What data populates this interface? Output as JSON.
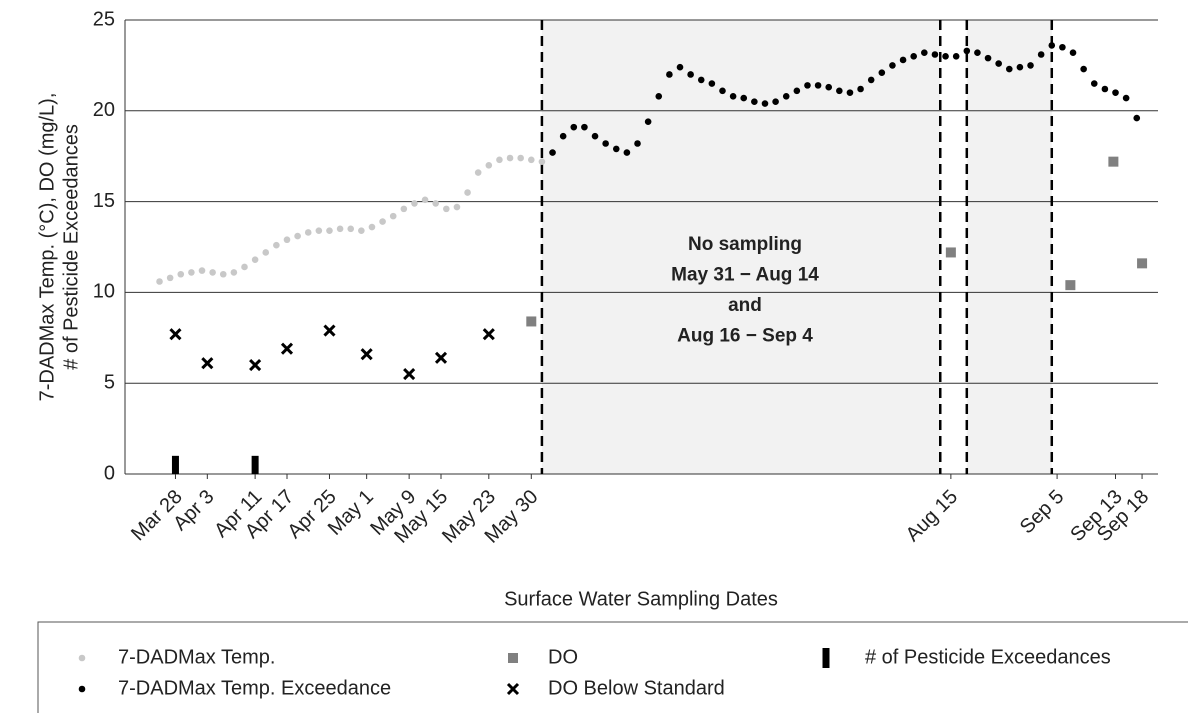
{
  "chart_data": {
    "type": "scatter",
    "y_label": [
      "7-DADMax Temp. (°C), DO (mg/L),",
      "# of Pesticide Exceedances"
    ],
    "x_label": "Surface Water Sampling Dates",
    "xlim": [
      72.5,
      267
    ],
    "ylim": [
      0,
      25
    ],
    "yticks": [
      0,
      5,
      10,
      15,
      20,
      25
    ],
    "grid": true,
    "xticks": [
      {
        "value": 82,
        "label": "Mar 28"
      },
      {
        "value": 88,
        "label": "Apr 3"
      },
      {
        "value": 97,
        "label": "Apr 11"
      },
      {
        "value": 103,
        "label": "Apr 17"
      },
      {
        "value": 111,
        "label": "Apr 25"
      },
      {
        "value": 118,
        "label": "May 1"
      },
      {
        "value": 126,
        "label": "May 9"
      },
      {
        "value": 132,
        "label": "May 15"
      },
      {
        "value": 141,
        "label": "May 23"
      },
      {
        "value": 149,
        "label": "May 30"
      },
      {
        "value": 228,
        "label": "Aug 15"
      },
      {
        "value": 248,
        "label": "Sep 5"
      },
      {
        "value": 259,
        "label": "Sep 13"
      },
      {
        "value": 264,
        "label": "Sep 18"
      }
    ],
    "vlines": [
      151,
      226,
      231,
      247
    ],
    "shaded": [
      [
        151,
        226
      ],
      [
        231,
        247
      ]
    ],
    "annotation": [
      "No sampling",
      "May 31 − Aug 14",
      "and",
      "Aug 16 − Sep 4"
    ],
    "series": [
      {
        "name": "7-DADMax Temp.",
        "color": "#c8c8c8",
        "marker": "dot",
        "x": [
          79,
          81,
          83,
          85,
          87,
          89,
          91,
          93,
          95,
          97,
          99,
          101,
          103,
          105,
          107,
          109,
          111,
          113,
          115,
          117,
          119,
          121,
          123,
          125,
          127,
          129,
          131,
          133,
          135,
          137,
          139,
          141,
          143,
          145,
          147,
          149,
          151
        ],
        "values": [
          10.6,
          10.8,
          11.0,
          11.1,
          11.2,
          11.1,
          11.0,
          11.1,
          11.4,
          11.8,
          12.2,
          12.6,
          12.9,
          13.1,
          13.3,
          13.4,
          13.4,
          13.5,
          13.5,
          13.4,
          13.6,
          13.9,
          14.2,
          14.6,
          14.9,
          15.1,
          14.9,
          14.6,
          14.7,
          15.5,
          16.6,
          17.0,
          17.3,
          17.4,
          17.4,
          17.3,
          17.2
        ]
      },
      {
        "name": "7-DADMax Temp. Exceedance",
        "color": "#000000",
        "marker": "dot",
        "x": [
          153,
          155,
          157,
          159,
          161,
          163,
          165,
          167,
          169,
          171,
          173,
          175,
          177,
          179,
          181,
          183,
          185,
          187,
          189,
          191,
          193,
          195,
          197,
          199,
          201,
          203,
          205,
          207,
          209,
          211,
          213,
          215,
          217,
          219,
          221,
          223,
          225,
          227,
          229,
          231,
          233,
          235,
          237,
          239,
          241,
          243,
          245,
          247,
          249,
          251,
          253,
          255,
          257,
          259,
          261,
          263
        ],
        "values": [
          17.7,
          18.6,
          19.1,
          19.1,
          18.6,
          18.2,
          17.9,
          17.7,
          18.2,
          19.4,
          20.8,
          22.0,
          22.4,
          22.0,
          21.7,
          21.5,
          21.1,
          20.8,
          20.7,
          20.5,
          20.4,
          20.5,
          20.8,
          21.1,
          21.4,
          21.4,
          21.3,
          21.1,
          21.0,
          21.2,
          21.7,
          22.1,
          22.5,
          22.8,
          23.0,
          23.2,
          23.1,
          23.0,
          23.0,
          23.3,
          23.2,
          22.9,
          22.6,
          22.3,
          22.4,
          22.5,
          23.1,
          23.6,
          23.5,
          23.2,
          22.3,
          21.5,
          21.2,
          21.0,
          20.7,
          19.6
        ]
      },
      {
        "name": "DO",
        "color": "#808080",
        "marker": "square",
        "x": [
          149,
          228,
          250.5,
          258.6,
          264
        ],
        "values": [
          8.4,
          12.2,
          10.4,
          17.2,
          11.6
        ]
      },
      {
        "name": "DO Below Standard",
        "color": "#000000",
        "marker": "cross",
        "x": [
          82,
          88,
          97,
          103,
          111,
          118,
          126,
          132,
          141
        ],
        "values": [
          7.7,
          6.1,
          6.0,
          6.9,
          7.9,
          6.6,
          5.5,
          6.4,
          7.7
        ]
      },
      {
        "name": "# of Pesticide Exceedances",
        "color": "#000000",
        "marker": "bar",
        "x": [
          82,
          97
        ],
        "values": [
          1,
          1
        ]
      }
    ]
  }
}
